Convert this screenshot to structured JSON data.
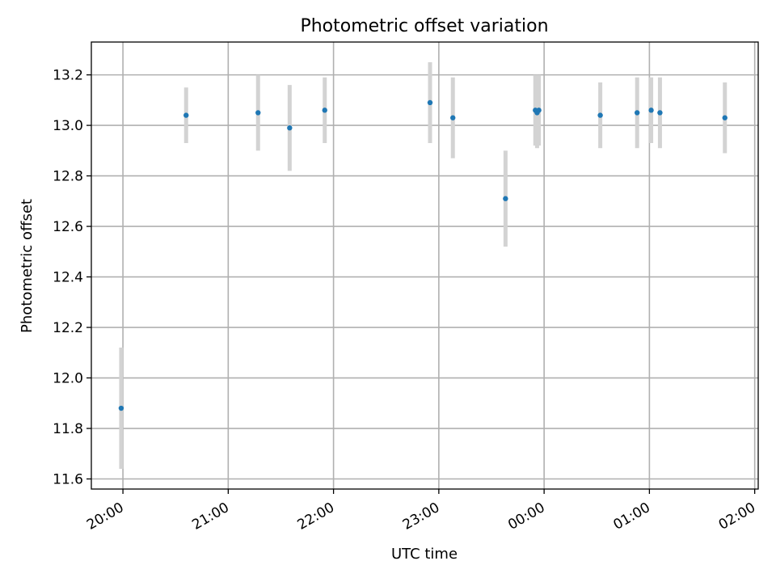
{
  "chart_data": {
    "type": "scatter",
    "title": "Photometric offset variation",
    "xlabel": "UTC time",
    "ylabel": "Photometric offset",
    "x_ticks": [
      "20:00",
      "21:00",
      "22:00",
      "23:00",
      "00:00",
      "01:00",
      "02:00"
    ],
    "y_ticks": [
      "11.6",
      "11.8",
      "12.0",
      "12.2",
      "12.4",
      "12.6",
      "12.8",
      "13.0",
      "13.2"
    ],
    "xlim": [
      "19:42",
      "02:02"
    ],
    "ylim": [
      11.56,
      13.33
    ],
    "grid": true,
    "point_color": "#1f77b4",
    "errorbar_color": "#d3d3d3",
    "points": [
      {
        "x": "19:59",
        "y": 11.88,
        "err": 0.24
      },
      {
        "x": "20:36",
        "y": 13.04,
        "err": 0.11
      },
      {
        "x": "21:17",
        "y": 13.05,
        "err": 0.15
      },
      {
        "x": "21:35",
        "y": 12.99,
        "err": 0.17
      },
      {
        "x": "21:55",
        "y": 13.06,
        "err": 0.13
      },
      {
        "x": "22:55",
        "y": 13.09,
        "err": 0.16
      },
      {
        "x": "23:08",
        "y": 13.03,
        "err": 0.16
      },
      {
        "x": "23:38",
        "y": 12.71,
        "err": 0.19
      },
      {
        "x": "23:55",
        "y": 13.06,
        "err": 0.14
      },
      {
        "x": "23:56",
        "y": 13.05,
        "err": 0.14
      },
      {
        "x": "23:57",
        "y": 13.06,
        "err": 0.14
      },
      {
        "x": "00:32",
        "y": 13.04,
        "err": 0.13
      },
      {
        "x": "00:53",
        "y": 13.05,
        "err": 0.14
      },
      {
        "x": "01:01",
        "y": 13.06,
        "err": 0.13
      },
      {
        "x": "01:06",
        "y": 13.05,
        "err": 0.14
      },
      {
        "x": "01:43",
        "y": 13.03,
        "err": 0.14
      }
    ]
  }
}
